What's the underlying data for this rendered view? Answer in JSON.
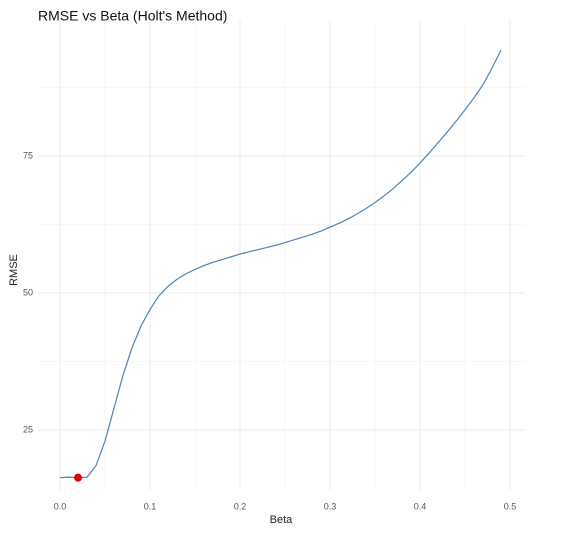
{
  "chart_data": {
    "type": "line",
    "title": "RMSE vs Beta (Holt's Method)",
    "x_label": "Beta",
    "y_label": "RMSE",
    "x": [
      0,
      0.01,
      0.02,
      0.03,
      0.04,
      0.05,
      0.06,
      0.07,
      0.08,
      0.09,
      0.1,
      0.11,
      0.12,
      0.13,
      0.14,
      0.15,
      0.16,
      0.17,
      0.18,
      0.19,
      0.2,
      0.21,
      0.22,
      0.23,
      0.24,
      0.25,
      0.26,
      0.27,
      0.28,
      0.29,
      0.3,
      0.31,
      0.32,
      0.33,
      0.34,
      0.35,
      0.36,
      0.37,
      0.38,
      0.39,
      0.4,
      0.41,
      0.42,
      0.43,
      0.44,
      0.45,
      0.46,
      0.47,
      0.48,
      0.49
    ],
    "series": [
      {
        "color": "#4f81b5",
        "values": [
          16.3,
          16.4,
          16.3,
          16.4,
          18.5,
          23,
          29,
          35,
          40,
          44,
          47,
          49.5,
          51.2,
          52.5,
          53.5,
          54.3,
          55.0,
          55.6,
          56.1,
          56.6,
          57.1,
          57.5,
          57.9,
          58.3,
          58.7,
          59.2,
          59.7,
          60.2,
          60.7,
          61.3,
          62.0,
          62.7,
          63.5,
          64.4,
          65.4,
          66.5,
          67.7,
          69.0,
          70.5,
          72.0,
          73.7,
          75.5,
          77.4,
          79.3,
          81.3,
          83.4,
          85.6,
          88.0,
          91.0,
          94.3
        ]
      }
    ],
    "highlight": {
      "x": 0.02,
      "y": 16.3,
      "color": "#e00000"
    },
    "xlim": [
      -0.0245,
      0.5167
    ],
    "ylim": [
      14.05,
      99.8
    ],
    "xticks": [
      {
        "value": 0,
        "label": "0.0"
      },
      0.1,
      0.2,
      0.3,
      0.4,
      0.5
    ],
    "yticks": [
      25,
      50,
      75
    ],
    "x_minor_grid": [
      0.05,
      0.15,
      0.25,
      0.35,
      0.45
    ],
    "y_minor_grid": [
      37.5,
      62.5,
      87.5
    ],
    "grid": true
  }
}
